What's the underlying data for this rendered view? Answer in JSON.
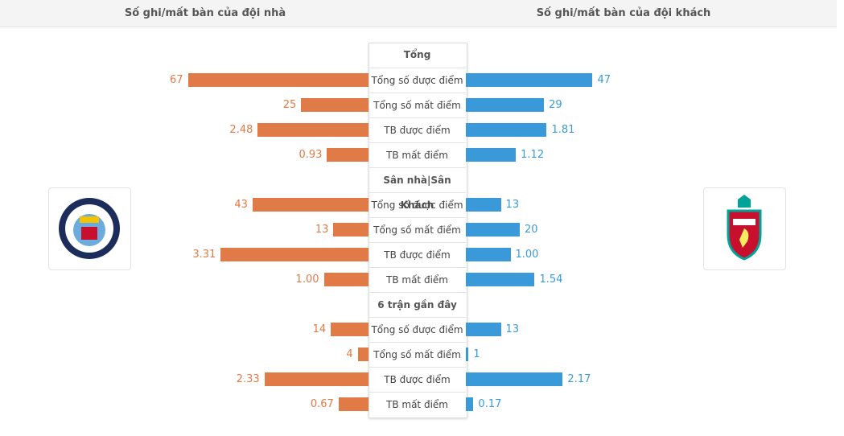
{
  "header": {
    "home": "Số ghi/mất bàn của đội nhà",
    "away": "Số ghi/mất bàn của đội khách"
  },
  "sections": [
    {
      "title": "Tổng",
      "rows": [
        {
          "label": "Tổng số được điểm",
          "home": 67,
          "away": 47
        },
        {
          "label": "Tổng số mất điểm",
          "home": 25,
          "away": 29
        },
        {
          "label": "TB được điểm",
          "home": 2.48,
          "away": 1.81
        },
        {
          "label": "TB mất điểm",
          "home": 0.93,
          "away": 1.12
        }
      ]
    },
    {
      "title": "Sân nhà|Sân Khách",
      "rows": [
        {
          "label": "Tổng số được điểm",
          "home": 43,
          "away": 13
        },
        {
          "label": "Tổng số mất điểm",
          "home": 13,
          "away": 20
        },
        {
          "label": "TB được điểm",
          "home": 3.31,
          "away": 1,
          "away_label": "1.00"
        },
        {
          "label": "TB mất điểm",
          "home": 1,
          "home_label": "1.00",
          "away": 1.54
        }
      ]
    },
    {
      "title": "6 trận gần đây",
      "rows": [
        {
          "label": "Tổng số được điểm",
          "home": 14,
          "away": 13
        },
        {
          "label": "Tổng số mất điểm",
          "home": 4,
          "away": 1
        },
        {
          "label": "TB được điểm",
          "home": 2.33,
          "away": 2.17
        },
        {
          "label": "TB mất điểm",
          "home": 0.67,
          "away": 0.17
        }
      ]
    }
  ]
}
